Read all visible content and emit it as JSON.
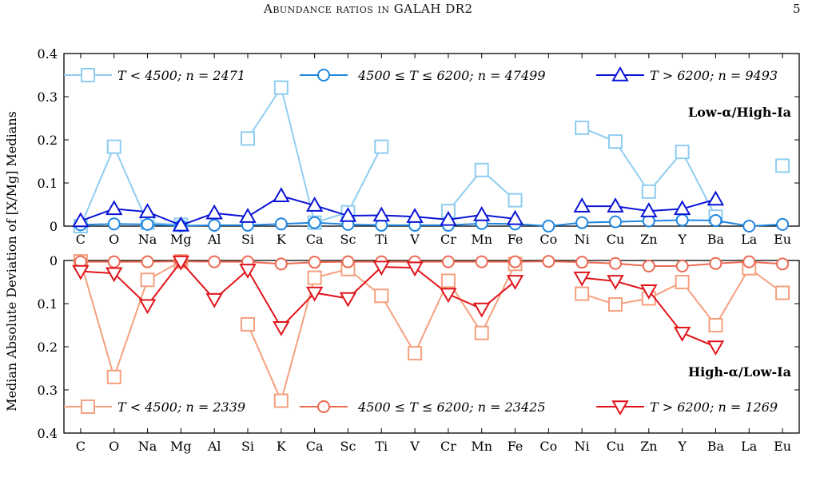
{
  "header": {
    "title": "Abundance ratios in GALAH DR2",
    "page_number": "5"
  },
  "caption_fragment": "",
  "chart_data": [
    {
      "type": "line",
      "panel": "top",
      "label": "Low-α/High-Ia",
      "ylabel": "Median Absolute Deviation of [X/Mg] Medians",
      "categories": [
        "C",
        "O",
        "Na",
        "Mg",
        "Al",
        "Si",
        "K",
        "Ca",
        "Sc",
        "Ti",
        "V",
        "Cr",
        "Mn",
        "Fe",
        "Co",
        "Ni",
        "Cu",
        "Zn",
        "Y",
        "Ba",
        "La",
        "Eu"
      ],
      "ylim": [
        0,
        0.4
      ],
      "y_inverted": false,
      "yticks": [
        "0",
        "0.1",
        "0.2",
        "0.3",
        "0.4"
      ],
      "legend_position": "top",
      "series": [
        {
          "name": "T < 4500; n = 2471",
          "marker": "square",
          "color": "#8fcdf0",
          "values": [
            0,
            0.184,
            0.008,
            0.003,
            null,
            0.203,
            0.321,
            0.008,
            0.032,
            0.184,
            null,
            0.035,
            0.13,
            0.06,
            null,
            0.228,
            0.196,
            0.08,
            0.172,
            0.022,
            null,
            0.14
          ]
        },
        {
          "name": "4500 ≤ T ≤ 6200; n = 47499",
          "marker": "circle",
          "color": "#1f86e0",
          "values": [
            0.003,
            0.005,
            0.004,
            0.001,
            0.002,
            0.002,
            0.005,
            0.008,
            0.004,
            0.002,
            0.002,
            0.002,
            0.006,
            0.005,
            0.0,
            0.008,
            0.01,
            0.012,
            0.014,
            0.013,
            0.0,
            0.004
          ]
        },
        {
          "name": "T > 6200; n = 9493",
          "marker": "triangle-up",
          "color": "#0a14d6",
          "values": [
            0.012,
            0.04,
            0.033,
            0.002,
            0.03,
            0.022,
            0.07,
            0.048,
            0.024,
            0.025,
            0.022,
            0.015,
            0.026,
            0.017,
            null,
            0.046,
            0.046,
            0.035,
            0.04,
            0.062,
            null,
            null
          ]
        }
      ]
    },
    {
      "type": "line",
      "panel": "bottom",
      "label": "High-α/Low-Ia",
      "categories": [
        "C",
        "O",
        "Na",
        "Mg",
        "Al",
        "Si",
        "K",
        "Ca",
        "Sc",
        "Ti",
        "V",
        "Cr",
        "Mn",
        "Fe",
        "Co",
        "Ni",
        "Cu",
        "Zn",
        "Y",
        "Ba",
        "La",
        "Eu"
      ],
      "ylim": [
        0,
        0.4
      ],
      "y_inverted": true,
      "yticks": [
        "0",
        "0.1",
        "0.2",
        "0.3",
        "0.4"
      ],
      "legend_position": "bottom",
      "series": [
        {
          "name": "T < 4500; n = 2339",
          "marker": "square",
          "color": "#f5a07e",
          "values": [
            0.002,
            0.27,
            0.045,
            0.002,
            null,
            0.148,
            0.325,
            0.04,
            0.02,
            0.082,
            0.215,
            0.047,
            0.168,
            0.008,
            null,
            0.077,
            0.102,
            0.088,
            0.05,
            0.15,
            0.018,
            0.075
          ]
        },
        {
          "name": "4500 ≤ T ≤ 6200; n = 23425",
          "marker": "circle",
          "color": "#ec6a52",
          "values": [
            0.003,
            0.003,
            0.003,
            0.002,
            0.003,
            0.003,
            0.008,
            0.004,
            0.003,
            0.003,
            0.003,
            0.003,
            0.003,
            0.003,
            0.002,
            0.004,
            0.007,
            0.013,
            0.013,
            0.007,
            0.003,
            0.008
          ]
        },
        {
          "name": "T > 6200; n = 1269",
          "marker": "triangle-down",
          "color": "#e0141a",
          "values": [
            0.025,
            0.03,
            0.104,
            0.003,
            0.09,
            0.022,
            0.155,
            0.075,
            0.088,
            0.015,
            0.017,
            0.078,
            0.112,
            0.048,
            null,
            0.04,
            0.048,
            0.07,
            0.168,
            0.2,
            null,
            null
          ]
        }
      ]
    }
  ]
}
